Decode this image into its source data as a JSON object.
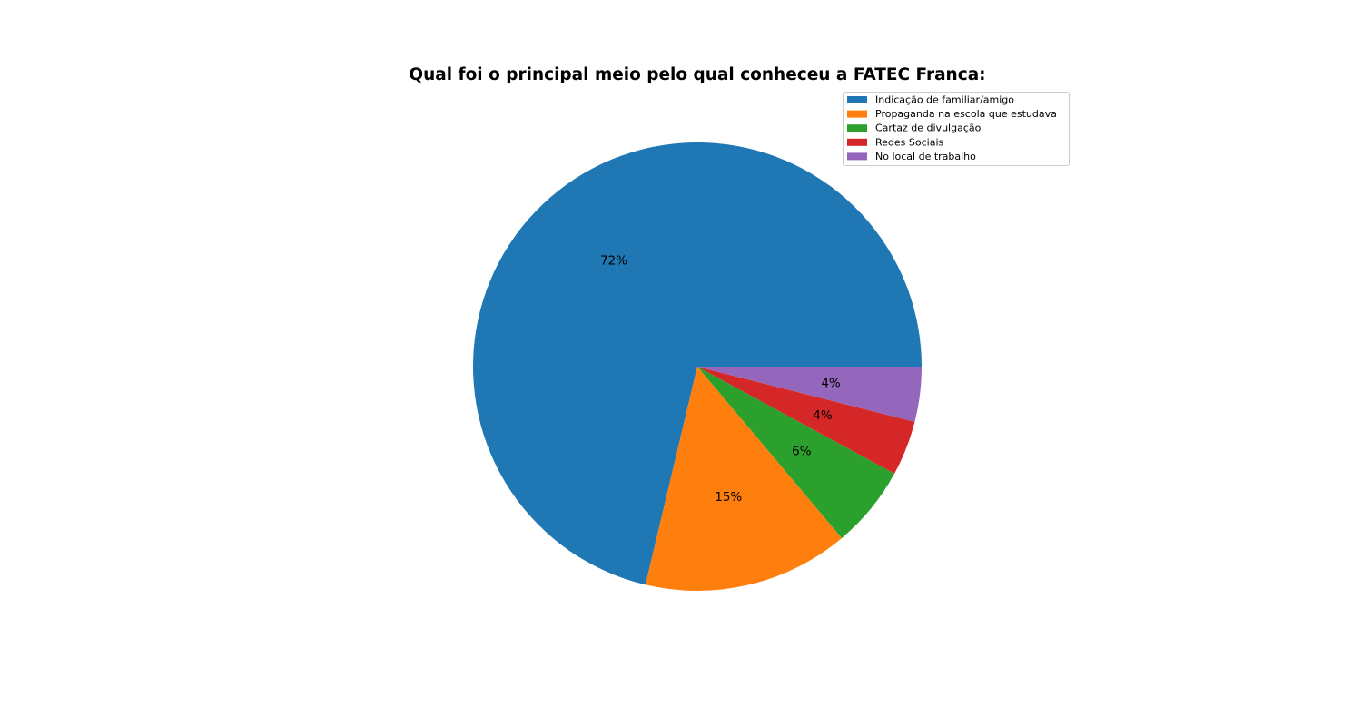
{
  "chart_data": {
    "type": "pie",
    "title": "Qual foi o principal meio pelo qual conheceu a FATEC Franca:",
    "categories": [
      "Indicação de familiar/amigo",
      " Propaganda na escola que estudava",
      "Cartaz de divulgação",
      "Redes Sociais",
      "No local de trabalho"
    ],
    "values": [
      72,
      15,
      6,
      4,
      4
    ],
    "value_labels": [
      "72%",
      "15%",
      "6%",
      "4%",
      "4%"
    ],
    "colors": [
      "#1f77b4",
      "#ff7f0e",
      "#2ca02c",
      "#d62728",
      "#9467bd"
    ],
    "start_angle": "3 o'clock",
    "direction": "counterclockwise",
    "legend_position": "top-right"
  }
}
